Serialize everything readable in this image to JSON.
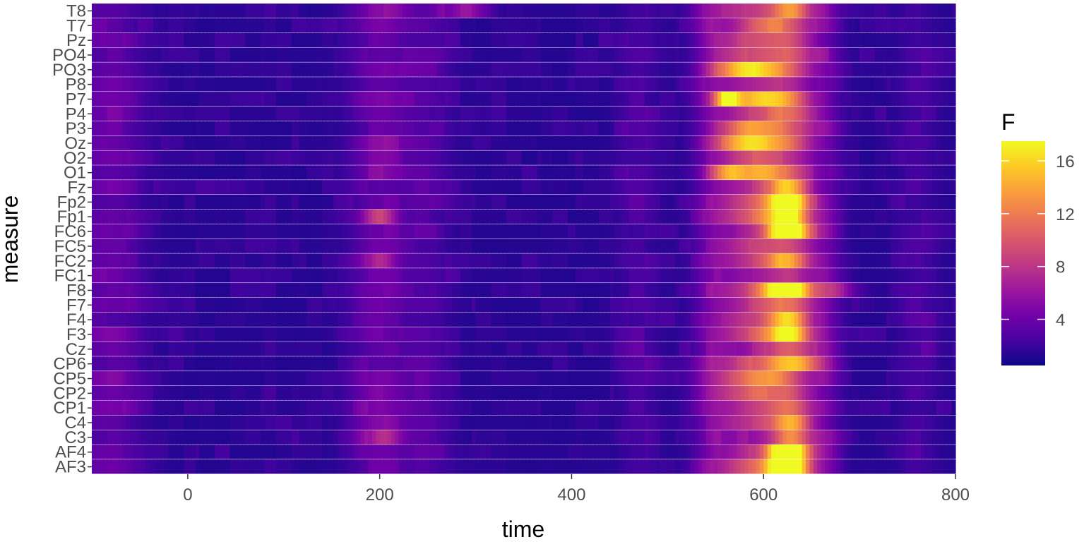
{
  "chart_data": {
    "type": "heatmap",
    "xlabel": "time",
    "ylabel": "measure",
    "xlim": [
      -100,
      800
    ],
    "x_ticks": [
      0,
      200,
      400,
      600,
      800
    ],
    "x_tick_labels": [
      "0",
      "200",
      "400",
      "600",
      "800"
    ],
    "y_categories": [
      "AF3",
      "AF4",
      "C3",
      "C4",
      "CP1",
      "CP2",
      "CP5",
      "CP6",
      "Cz",
      "F3",
      "F4",
      "F7",
      "F8",
      "FC1",
      "FC2",
      "FC5",
      "FC6",
      "Fp1",
      "Fp2",
      "Fz",
      "O1",
      "O2",
      "Oz",
      "P3",
      "P4",
      "P7",
      "P8",
      "PO3",
      "PO4",
      "Pz",
      "T7",
      "T8"
    ],
    "legend": {
      "title": "F",
      "ticks": [
        4,
        8,
        12,
        16
      ],
      "tick_labels": [
        "4",
        "8",
        "12",
        "16"
      ],
      "range": [
        0.5,
        17.5
      ],
      "palette": "plasma"
    },
    "time_step": 4,
    "profile_bumps": [
      {
        "t": -80,
        "w": 25,
        "amp": 2.5
      },
      {
        "t": 200,
        "w": 22,
        "amp": 3.0
      },
      {
        "t": 250,
        "w": 18,
        "amp": 1.5
      },
      {
        "t": 470,
        "w": 15,
        "amp": 1.2
      },
      {
        "t": 545,
        "w": 12,
        "amp": 2.0
      },
      {
        "t": 590,
        "w": 30,
        "amp": 7.0
      },
      {
        "t": 630,
        "w": 18,
        "amp": 6.0
      },
      {
        "t": 665,
        "w": 12,
        "amp": 2.5
      },
      {
        "t": 760,
        "w": 15,
        "amp": 1.2
      }
    ],
    "channel_peaks": {
      "AF3": [
        {
          "t": 625,
          "w": 14,
          "amp": 14
        }
      ],
      "AF4": [
        {
          "t": 625,
          "w": 14,
          "amp": 12
        }
      ],
      "FC6": [
        {
          "t": 625,
          "w": 14,
          "amp": 13
        }
      ],
      "F8": [
        {
          "t": 625,
          "w": 18,
          "amp": 12
        },
        {
          "t": 680,
          "w": 15,
          "amp": 3
        }
      ],
      "Fp1": [
        {
          "t": 625,
          "w": 14,
          "amp": 10
        },
        {
          "t": 200,
          "w": 12,
          "amp": 5
        }
      ],
      "Fp2": [
        {
          "t": 625,
          "w": 14,
          "amp": 10
        }
      ],
      "Fz": [
        {
          "t": 625,
          "w": 14,
          "amp": 8
        }
      ],
      "P7": [
        {
          "t": 562,
          "w": 10,
          "amp": 10
        },
        {
          "t": 600,
          "w": 20,
          "amp": 5
        }
      ],
      "O1": [
        {
          "t": 565,
          "w": 14,
          "amp": 8
        },
        {
          "t": 600,
          "w": 15,
          "amp": 5
        }
      ],
      "PO3": [
        {
          "t": 580,
          "w": 22,
          "amp": 7
        }
      ],
      "Oz": [
        {
          "t": 585,
          "w": 22,
          "amp": 6
        }
      ],
      "P3": [
        {
          "t": 585,
          "w": 22,
          "amp": 5
        }
      ],
      "O2": [
        {
          "t": 585,
          "w": 22,
          "amp": 4
        }
      ],
      "C4": [
        {
          "t": 630,
          "w": 14,
          "amp": 7
        }
      ],
      "C3": [
        {
          "t": 630,
          "w": 14,
          "amp": 5
        },
        {
          "t": 205,
          "w": 12,
          "amp": 3
        }
      ],
      "CP6": [
        {
          "t": 640,
          "w": 20,
          "amp": 5
        }
      ],
      "CP5": [
        {
          "t": 600,
          "w": 25,
          "amp": 4
        }
      ],
      "FC2": [
        {
          "t": 625,
          "w": 14,
          "amp": 6
        },
        {
          "t": 200,
          "w": 10,
          "amp": 3
        }
      ],
      "F4": [
        {
          "t": 625,
          "w": 14,
          "amp": 6
        }
      ],
      "F3": [
        {
          "t": 625,
          "w": 14,
          "amp": 7
        }
      ],
      "T8": [
        {
          "t": 630,
          "w": 14,
          "amp": 5
        },
        {
          "t": 290,
          "w": 18,
          "amp": 4
        }
      ],
      "T7": [
        {
          "t": 600,
          "w": 20,
          "amp": 4
        }
      ]
    }
  }
}
